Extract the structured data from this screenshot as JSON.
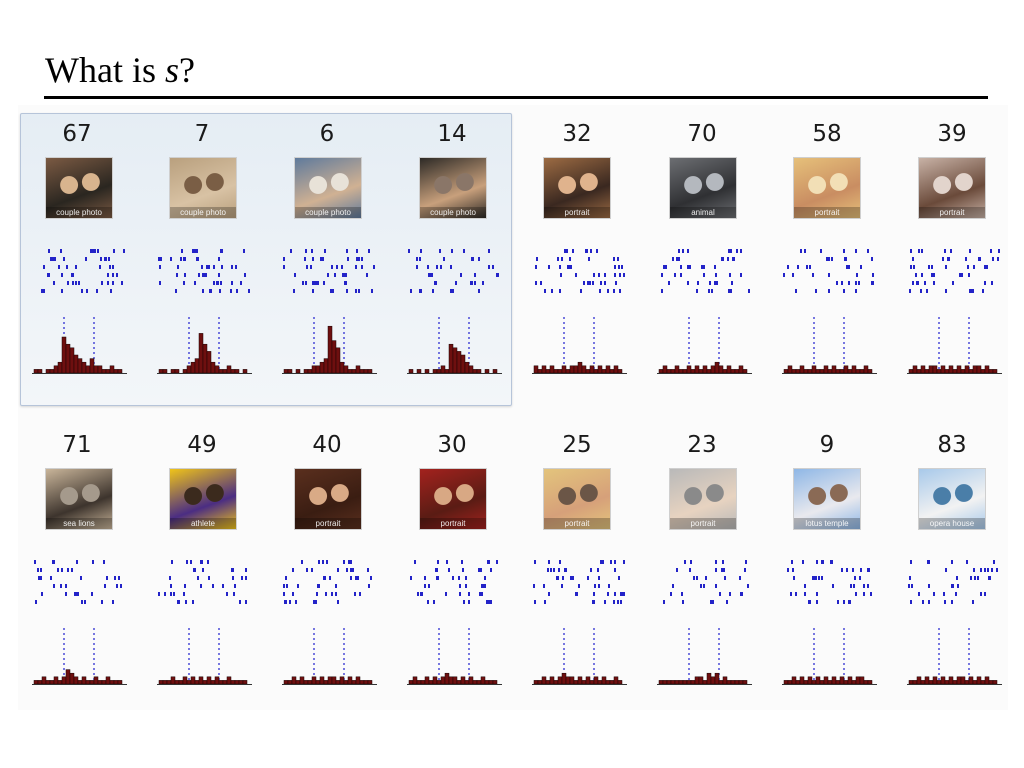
{
  "slide": {
    "title_prefix": "What is ",
    "title_var": "s",
    "title_suffix": "?"
  },
  "colors": {
    "spike": "#2323c8",
    "bar_fill": "#6e0f0f",
    "marker": "#3d3dd4",
    "highlight_bg": "#e8eef5",
    "highlight_border": "#b6c4d9"
  },
  "highlight": {
    "group": "first-four-stimuli"
  },
  "panels": [
    {
      "stim": "67",
      "image": "two-people-photo-icon",
      "image_desc": "couple photo",
      "colors": [
        "#7b5a43",
        "#2a2620",
        "#d8b48e"
      ],
      "psth": [
        1,
        1,
        0,
        1,
        1,
        2,
        3,
        10,
        8,
        7,
        5,
        4,
        3,
        2,
        4,
        2,
        2,
        1,
        1,
        2,
        1,
        1
      ],
      "raster_rows": [
        9,
        9,
        8,
        8,
        9,
        7
      ]
    },
    {
      "stim": "7",
      "image": "two-people-photo-icon",
      "image_desc": "couple photo",
      "colors": [
        "#b9a07e",
        "#d8c2a4",
        "#7a5e45"
      ],
      "psth": [
        1,
        1,
        0,
        1,
        1,
        0,
        1,
        2,
        3,
        4,
        11,
        8,
        6,
        3,
        2,
        1,
        1,
        2,
        1,
        1,
        0,
        1
      ],
      "raster_rows": [
        8,
        9,
        9,
        8,
        9,
        8
      ]
    },
    {
      "stim": "6",
      "image": "two-people-photo-icon",
      "image_desc": "couple photo",
      "colors": [
        "#5f7a9c",
        "#d0b193",
        "#e8e2d8"
      ],
      "psth": [
        1,
        1,
        0,
        1,
        0,
        1,
        1,
        2,
        2,
        3,
        4,
        13,
        9,
        7,
        3,
        2,
        1,
        1,
        2,
        1,
        1,
        1
      ],
      "raster_rows": [
        8,
        9,
        9,
        8,
        9,
        8
      ]
    },
    {
      "stim": "14",
      "image": "two-people-photo-icon",
      "image_desc": "couple photo",
      "colors": [
        "#2d2a26",
        "#c8a07c",
        "#8a7668"
      ],
      "psth": [
        1,
        0,
        1,
        0,
        1,
        0,
        1,
        1,
        2,
        1,
        8,
        7,
        6,
        5,
        3,
        2,
        1,
        1,
        0,
        1,
        0,
        1
      ],
      "raster_rows": [
        7,
        8,
        8,
        7,
        8,
        7
      ]
    },
    {
      "stim": "32",
      "image": "portrait-photo-icon",
      "image_desc": "portrait",
      "colors": [
        "#9c6b43",
        "#3a2820",
        "#e0b38d"
      ],
      "psth": [
        2,
        1,
        2,
        1,
        2,
        1,
        1,
        2,
        1,
        2,
        2,
        3,
        2,
        1,
        2,
        1,
        2,
        1,
        2,
        1,
        2,
        1
      ],
      "raster_rows": [
        8,
        9,
        9,
        8,
        9,
        8
      ]
    },
    {
      "stim": "70",
      "image": "animal-photo-icon",
      "image_desc": "animal",
      "colors": [
        "#6c6e72",
        "#2f3033",
        "#b4b8be"
      ],
      "psth": [
        1,
        2,
        1,
        1,
        2,
        1,
        1,
        2,
        1,
        2,
        1,
        2,
        1,
        2,
        3,
        2,
        1,
        2,
        1,
        1,
        2,
        1
      ],
      "raster_rows": [
        7,
        8,
        8,
        7,
        8,
        7
      ]
    },
    {
      "stim": "58",
      "image": "portrait-photo-icon",
      "image_desc": "portrait",
      "colors": [
        "#e6c07a",
        "#c98d62",
        "#f2dfb6"
      ],
      "psth": [
        1,
        2,
        1,
        1,
        2,
        1,
        1,
        2,
        1,
        1,
        2,
        1,
        2,
        1,
        1,
        2,
        1,
        2,
        1,
        1,
        2,
        1
      ],
      "raster_rows": [
        6,
        7,
        7,
        6,
        7,
        6
      ]
    },
    {
      "stim": "39",
      "image": "portrait-photo-icon",
      "image_desc": "portrait",
      "colors": [
        "#c8b2a6",
        "#6a4a3a",
        "#e2d4cc"
      ],
      "psth": [
        1,
        2,
        1,
        2,
        1,
        2,
        2,
        1,
        2,
        1,
        2,
        1,
        2,
        1,
        2,
        1,
        2,
        2,
        1,
        2,
        1,
        1
      ],
      "raster_rows": [
        8,
        9,
        9,
        8,
        9,
        8
      ]
    },
    {
      "stim": "71",
      "image": "animal-photo-icon",
      "image_desc": "sea lions",
      "colors": [
        "#c9b59a",
        "#3d342d",
        "#a59a8c"
      ],
      "psth": [
        1,
        1,
        2,
        1,
        1,
        2,
        1,
        2,
        4,
        3,
        2,
        1,
        2,
        1,
        1,
        2,
        1,
        1,
        2,
        1,
        1,
        1
      ],
      "raster_rows": [
        6,
        7,
        7,
        6,
        7,
        6
      ]
    },
    {
      "stim": "49",
      "image": "person-photo-icon",
      "image_desc": "athlete",
      "colors": [
        "#f0c419",
        "#4b2d83",
        "#3b2a1d"
      ],
      "psth": [
        1,
        1,
        1,
        2,
        1,
        1,
        2,
        1,
        2,
        1,
        2,
        1,
        2,
        1,
        2,
        1,
        1,
        2,
        1,
        1,
        1,
        1
      ],
      "raster_rows": [
        6,
        7,
        7,
        6,
        7,
        6
      ]
    },
    {
      "stim": "40",
      "image": "portrait-photo-icon",
      "image_desc": "portrait",
      "colors": [
        "#5a2f1e",
        "#3a1d12",
        "#d9aa86"
      ],
      "psth": [
        1,
        1,
        2,
        1,
        2,
        1,
        1,
        2,
        1,
        2,
        1,
        2,
        2,
        1,
        2,
        1,
        2,
        1,
        2,
        1,
        1,
        1
      ],
      "raster_rows": [
        7,
        8,
        8,
        7,
        8,
        7
      ]
    },
    {
      "stim": "30",
      "image": "portrait-photo-icon",
      "image_desc": "portrait",
      "colors": [
        "#a3221e",
        "#5a1c14",
        "#d8a884"
      ],
      "psth": [
        1,
        2,
        1,
        1,
        2,
        1,
        2,
        1,
        2,
        3,
        2,
        2,
        1,
        2,
        1,
        2,
        1,
        1,
        2,
        1,
        1,
        1
      ],
      "raster_rows": [
        7,
        8,
        8,
        7,
        8,
        7
      ]
    },
    {
      "stim": "25",
      "image": "portrait-photo-icon",
      "image_desc": "portrait",
      "colors": [
        "#e3c47c",
        "#d6a07a",
        "#6b5647"
      ],
      "psth": [
        1,
        1,
        2,
        1,
        2,
        1,
        2,
        3,
        2,
        2,
        1,
        2,
        1,
        2,
        1,
        2,
        1,
        2,
        1,
        1,
        2,
        1
      ],
      "raster_rows": [
        8,
        9,
        9,
        8,
        9,
        8
      ]
    },
    {
      "stim": "23",
      "image": "portrait-photo-icon",
      "image_desc": "portrait",
      "colors": [
        "#b9b9b9",
        "#e7d3c0",
        "#8a8a8a"
      ],
      "psth": [
        1,
        1,
        1,
        1,
        1,
        1,
        1,
        1,
        1,
        2,
        2,
        1,
        3,
        2,
        3,
        1,
        2,
        1,
        1,
        1,
        1,
        1
      ],
      "raster_rows": [
        5,
        6,
        6,
        5,
        6,
        5
      ]
    },
    {
      "stim": "9",
      "image": "landmark-photo-icon",
      "image_desc": "lotus temple",
      "colors": [
        "#8fb7e6",
        "#e9e9ee",
        "#8a6a55"
      ],
      "psth": [
        1,
        1,
        2,
        1,
        2,
        1,
        2,
        1,
        2,
        1,
        2,
        1,
        2,
        1,
        2,
        1,
        2,
        1,
        2,
        2,
        1,
        1
      ],
      "raster_rows": [
        7,
        8,
        8,
        7,
        8,
        7
      ]
    },
    {
      "stim": "83",
      "image": "landmark-photo-icon",
      "image_desc": "opera house",
      "colors": [
        "#a8c9ea",
        "#f2f2f2",
        "#4a7ea8"
      ],
      "psth": [
        1,
        1,
        2,
        1,
        2,
        1,
        2,
        1,
        2,
        1,
        2,
        1,
        2,
        2,
        1,
        2,
        1,
        2,
        1,
        2,
        1,
        1
      ],
      "raster_rows": [
        6,
        7,
        7,
        6,
        7,
        6
      ]
    }
  ]
}
